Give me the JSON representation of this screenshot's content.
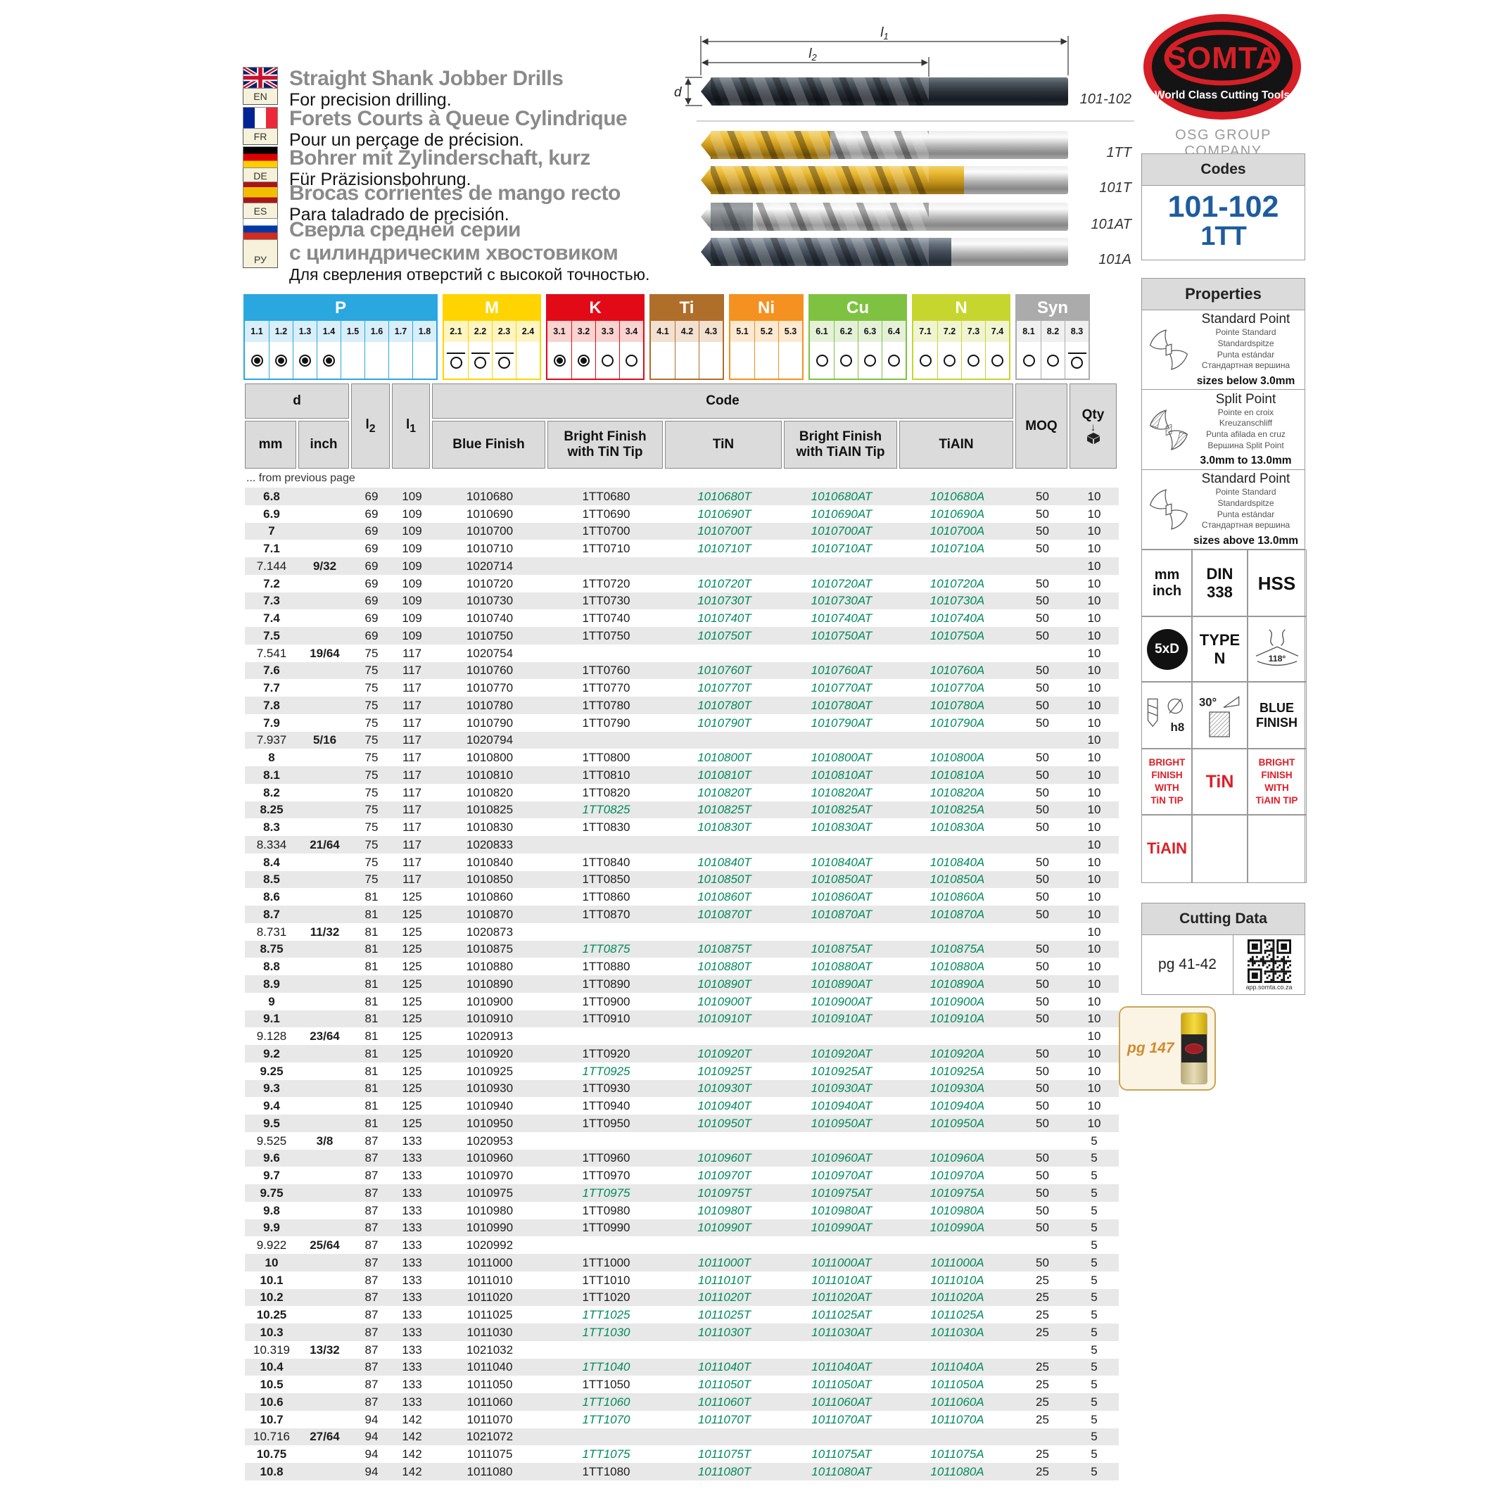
{
  "header": {
    "languages": [
      {
        "flag": "uk",
        "code": "EN",
        "title": "Straight Shank Jobber Drills",
        "subtitle": "For precision drilling."
      },
      {
        "flag": "fr",
        "code": "FR",
        "title": "Forets Courts à Queue Cylindrique",
        "subtitle": "Pour un perçage de précision."
      },
      {
        "flag": "de",
        "code": "DE",
        "title": "Bohrer mit Zylinderschaft, kurz",
        "subtitle": "Für Präzisionsbohrung."
      },
      {
        "flag": "es",
        "code": "ES",
        "title": "Brocas corrientes de mango recto",
        "subtitle": "Para taladrado de precisión."
      },
      {
        "flag": "ru",
        "code": "РУ",
        "title": "Сверла средней серии",
        "title2": "с цилиндрическим хвостовиком",
        "subtitle": "Для сверления отверстий с высокой точностью."
      }
    ]
  },
  "diagram": {
    "labels": {
      "l_char": "l",
      "l1_sub": "1",
      "l2_sub": "2",
      "d": "d"
    },
    "drills": [
      "101-102",
      "1TT",
      "101T",
      "101AT",
      "101A"
    ]
  },
  "brand": {
    "name": "SOMTA",
    "tagline": "World Class Cutting Tools",
    "company": "OSG GROUP COMPANY",
    "red": "#D61F26"
  },
  "codes": {
    "title": "Codes",
    "primary": "101-102",
    "secondary": "1TT",
    "color": "#1E5C9E"
  },
  "materials": {
    "groups": [
      {
        "name": "P",
        "color": "#2BA7DF",
        "tint": "#D8EEF9",
        "cells": [
          {
            "n": "1.1",
            "mark": "filled"
          },
          {
            "n": "1.2",
            "mark": "filled"
          },
          {
            "n": "1.3",
            "mark": "filled"
          },
          {
            "n": "1.4",
            "mark": "filled"
          },
          {
            "n": "1.5",
            "mark": "none"
          },
          {
            "n": "1.6",
            "mark": "none"
          },
          {
            "n": "1.7",
            "mark": "none"
          },
          {
            "n": "1.8",
            "mark": "none"
          }
        ]
      },
      {
        "name": "M",
        "color": "#FFD400",
        "tint": "#FFF5C2",
        "cells": [
          {
            "n": "2.1",
            "mark": "bar"
          },
          {
            "n": "2.2",
            "mark": "bar"
          },
          {
            "n": "2.3",
            "mark": "bar"
          },
          {
            "n": "2.4",
            "mark": "none"
          }
        ]
      },
      {
        "name": "K",
        "color": "#E30A17",
        "tint": "#F9D3D0",
        "cells": [
          {
            "n": "3.1",
            "mark": "filled"
          },
          {
            "n": "3.2",
            "mark": "filled"
          },
          {
            "n": "3.3",
            "mark": "empty"
          },
          {
            "n": "3.4",
            "mark": "empty"
          }
        ]
      },
      {
        "name": "Ti",
        "color": "#B06E2B",
        "tint": "#F2E0D0",
        "cells": [
          {
            "n": "4.1",
            "mark": "none"
          },
          {
            "n": "4.2",
            "mark": "none"
          },
          {
            "n": "4.3",
            "mark": "none"
          }
        ]
      },
      {
        "name": "Ni",
        "color": "#F59120",
        "tint": "#FDE9D2",
        "cells": [
          {
            "n": "5.1",
            "mark": "none"
          },
          {
            "n": "5.2",
            "mark": "none"
          },
          {
            "n": "5.3",
            "mark": "none"
          }
        ]
      },
      {
        "name": "Cu",
        "color": "#7FC241",
        "tint": "#E4F1D8",
        "cells": [
          {
            "n": "6.1",
            "mark": "empty"
          },
          {
            "n": "6.2",
            "mark": "empty"
          },
          {
            "n": "6.3",
            "mark": "empty"
          },
          {
            "n": "6.4",
            "mark": "empty"
          }
        ]
      },
      {
        "name": "N",
        "color": "#C6D62E",
        "tint": "#F0F4D0",
        "cells": [
          {
            "n": "7.1",
            "mark": "empty"
          },
          {
            "n": "7.2",
            "mark": "empty"
          },
          {
            "n": "7.3",
            "mark": "empty"
          },
          {
            "n": "7.4",
            "mark": "empty"
          }
        ]
      },
      {
        "name": "Syn",
        "color": "#ABABAB",
        "tint": "#EFEFEF",
        "cells": [
          {
            "n": "8.1",
            "mark": "empty"
          },
          {
            "n": "8.2",
            "mark": "empty"
          },
          {
            "n": "8.3",
            "mark": "bar"
          }
        ]
      }
    ]
  },
  "table": {
    "headers": {
      "d": "d",
      "mm": "mm",
      "inch": "inch",
      "code": "Code",
      "blue": "Blue Finish",
      "tt": "Bright Finish\nwith TiN Tip",
      "tin": "TiN",
      "at": "Bright Finish\nwith TiAIN Tip",
      "a": "TiAIN",
      "moq": "MOQ",
      "qty": "Qty"
    },
    "note": "... from previous page",
    "green_color": "#008A5E",
    "columns": [
      "mm",
      "inch",
      "l2",
      "l1",
      "blue_finish",
      "bright_finish_tin_tip",
      "tin",
      "bright_finish_tiain_tip",
      "tiain",
      "moq",
      "qty",
      "tt_is_green"
    ],
    "rows": [
      [
        "6.8",
        "",
        "69",
        "109",
        "1010680",
        "1TT0680",
        "1010680T",
        "1010680AT",
        "1010680A",
        "50",
        "10",
        0
      ],
      [
        "6.9",
        "",
        "69",
        "109",
        "1010690",
        "1TT0690",
        "1010690T",
        "1010690AT",
        "1010690A",
        "50",
        "10",
        0
      ],
      [
        "7",
        "",
        "69",
        "109",
        "1010700",
        "1TT0700",
        "1010700T",
        "1010700AT",
        "1010700A",
        "50",
        "10",
        0
      ],
      [
        "7.1",
        "",
        "69",
        "109",
        "1010710",
        "1TT0710",
        "1010710T",
        "1010710AT",
        "1010710A",
        "50",
        "10",
        0
      ],
      [
        "7.144",
        "9/32",
        "69",
        "109",
        "1020714",
        "",
        "",
        "",
        "",
        "",
        "10",
        0
      ],
      [
        "7.2",
        "",
        "69",
        "109",
        "1010720",
        "1TT0720",
        "1010720T",
        "1010720AT",
        "1010720A",
        "50",
        "10",
        0
      ],
      [
        "7.3",
        "",
        "69",
        "109",
        "1010730",
        "1TT0730",
        "1010730T",
        "1010730AT",
        "1010730A",
        "50",
        "10",
        0
      ],
      [
        "7.4",
        "",
        "69",
        "109",
        "1010740",
        "1TT0740",
        "1010740T",
        "1010740AT",
        "1010740A",
        "50",
        "10",
        0
      ],
      [
        "7.5",
        "",
        "69",
        "109",
        "1010750",
        "1TT0750",
        "1010750T",
        "1010750AT",
        "1010750A",
        "50",
        "10",
        0
      ],
      [
        "7.541",
        "19/64",
        "75",
        "117",
        "1020754",
        "",
        "",
        "",
        "",
        "",
        "10",
        0
      ],
      [
        "7.6",
        "",
        "75",
        "117",
        "1010760",
        "1TT0760",
        "1010760T",
        "1010760AT",
        "1010760A",
        "50",
        "10",
        0
      ],
      [
        "7.7",
        "",
        "75",
        "117",
        "1010770",
        "1TT0770",
        "1010770T",
        "1010770AT",
        "1010770A",
        "50",
        "10",
        0
      ],
      [
        "7.8",
        "",
        "75",
        "117",
        "1010780",
        "1TT0780",
        "1010780T",
        "1010780AT",
        "1010780A",
        "50",
        "10",
        0
      ],
      [
        "7.9",
        "",
        "75",
        "117",
        "1010790",
        "1TT0790",
        "1010790T",
        "1010790AT",
        "1010790A",
        "50",
        "10",
        0
      ],
      [
        "7.937",
        "5/16",
        "75",
        "117",
        "1020794",
        "",
        "",
        "",
        "",
        "",
        "10",
        0
      ],
      [
        "8",
        "",
        "75",
        "117",
        "1010800",
        "1TT0800",
        "1010800T",
        "1010800AT",
        "1010800A",
        "50",
        "10",
        0
      ],
      [
        "8.1",
        "",
        "75",
        "117",
        "1010810",
        "1TT0810",
        "1010810T",
        "1010810AT",
        "1010810A",
        "50",
        "10",
        0
      ],
      [
        "8.2",
        "",
        "75",
        "117",
        "1010820",
        "1TT0820",
        "1010820T",
        "1010820AT",
        "1010820A",
        "50",
        "10",
        0
      ],
      [
        "8.25",
        "",
        "75",
        "117",
        "1010825",
        "1TT0825",
        "1010825T",
        "1010825AT",
        "1010825A",
        "50",
        "10",
        1
      ],
      [
        "8.3",
        "",
        "75",
        "117",
        "1010830",
        "1TT0830",
        "1010830T",
        "1010830AT",
        "1010830A",
        "50",
        "10",
        0
      ],
      [
        "8.334",
        "21/64",
        "75",
        "117",
        "1020833",
        "",
        "",
        "",
        "",
        "",
        "10",
        0
      ],
      [
        "8.4",
        "",
        "75",
        "117",
        "1010840",
        "1TT0840",
        "1010840T",
        "1010840AT",
        "1010840A",
        "50",
        "10",
        0
      ],
      [
        "8.5",
        "",
        "75",
        "117",
        "1010850",
        "1TT0850",
        "1010850T",
        "1010850AT",
        "1010850A",
        "50",
        "10",
        0
      ],
      [
        "8.6",
        "",
        "81",
        "125",
        "1010860",
        "1TT0860",
        "1010860T",
        "1010860AT",
        "1010860A",
        "50",
        "10",
        0
      ],
      [
        "8.7",
        "",
        "81",
        "125",
        "1010870",
        "1TT0870",
        "1010870T",
        "1010870AT",
        "1010870A",
        "50",
        "10",
        0
      ],
      [
        "8.731",
        "11/32",
        "81",
        "125",
        "1020873",
        "",
        "",
        "",
        "",
        "",
        "10",
        0
      ],
      [
        "8.75",
        "",
        "81",
        "125",
        "1010875",
        "1TT0875",
        "1010875T",
        "1010875AT",
        "1010875A",
        "50",
        "10",
        1
      ],
      [
        "8.8",
        "",
        "81",
        "125",
        "1010880",
        "1TT0880",
        "1010880T",
        "1010880AT",
        "1010880A",
        "50",
        "10",
        0
      ],
      [
        "8.9",
        "",
        "81",
        "125",
        "1010890",
        "1TT0890",
        "1010890T",
        "1010890AT",
        "1010890A",
        "50",
        "10",
        0
      ],
      [
        "9",
        "",
        "81",
        "125",
        "1010900",
        "1TT0900",
        "1010900T",
        "1010900AT",
        "1010900A",
        "50",
        "10",
        0
      ],
      [
        "9.1",
        "",
        "81",
        "125",
        "1010910",
        "1TT0910",
        "1010910T",
        "1010910AT",
        "1010910A",
        "50",
        "10",
        0
      ],
      [
        "9.128",
        "23/64",
        "81",
        "125",
        "1020913",
        "",
        "",
        "",
        "",
        "",
        "10",
        0
      ],
      [
        "9.2",
        "",
        "81",
        "125",
        "1010920",
        "1TT0920",
        "1010920T",
        "1010920AT",
        "1010920A",
        "50",
        "10",
        0
      ],
      [
        "9.25",
        "",
        "81",
        "125",
        "1010925",
        "1TT0925",
        "1010925T",
        "1010925AT",
        "1010925A",
        "50",
        "10",
        1
      ],
      [
        "9.3",
        "",
        "81",
        "125",
        "1010930",
        "1TT0930",
        "1010930T",
        "1010930AT",
        "1010930A",
        "50",
        "10",
        0
      ],
      [
        "9.4",
        "",
        "81",
        "125",
        "1010940",
        "1TT0940",
        "1010940T",
        "1010940AT",
        "1010940A",
        "50",
        "10",
        0
      ],
      [
        "9.5",
        "",
        "81",
        "125",
        "1010950",
        "1TT0950",
        "1010950T",
        "1010950AT",
        "1010950A",
        "50",
        "10",
        0
      ],
      [
        "9.525",
        "3/8",
        "87",
        "133",
        "1020953",
        "",
        "",
        "",
        "",
        "",
        "5",
        0
      ],
      [
        "9.6",
        "",
        "87",
        "133",
        "1010960",
        "1TT0960",
        "1010960T",
        "1010960AT",
        "1010960A",
        "50",
        "5",
        0
      ],
      [
        "9.7",
        "",
        "87",
        "133",
        "1010970",
        "1TT0970",
        "1010970T",
        "1010970AT",
        "1010970A",
        "50",
        "5",
        0
      ],
      [
        "9.75",
        "",
        "87",
        "133",
        "1010975",
        "1TT0975",
        "1010975T",
        "1010975AT",
        "1010975A",
        "50",
        "5",
        1
      ],
      [
        "9.8",
        "",
        "87",
        "133",
        "1010980",
        "1TT0980",
        "1010980T",
        "1010980AT",
        "1010980A",
        "50",
        "5",
        0
      ],
      [
        "9.9",
        "",
        "87",
        "133",
        "1010990",
        "1TT0990",
        "1010990T",
        "1010990AT",
        "1010990A",
        "50",
        "5",
        0
      ],
      [
        "9.922",
        "25/64",
        "87",
        "133",
        "1020992",
        "",
        "",
        "",
        "",
        "",
        "5",
        0
      ],
      [
        "10",
        "",
        "87",
        "133",
        "1011000",
        "1TT1000",
        "1011000T",
        "1011000AT",
        "1011000A",
        "50",
        "5",
        0
      ],
      [
        "10.1",
        "",
        "87",
        "133",
        "1011010",
        "1TT1010",
        "1011010T",
        "1011010AT",
        "1011010A",
        "25",
        "5",
        0
      ],
      [
        "10.2",
        "",
        "87",
        "133",
        "1011020",
        "1TT1020",
        "1011020T",
        "1011020AT",
        "1011020A",
        "25",
        "5",
        0
      ],
      [
        "10.25",
        "",
        "87",
        "133",
        "1011025",
        "1TT1025",
        "1011025T",
        "1011025AT",
        "1011025A",
        "25",
        "5",
        1
      ],
      [
        "10.3",
        "",
        "87",
        "133",
        "1011030",
        "1TT1030",
        "1011030T",
        "1011030AT",
        "1011030A",
        "25",
        "5",
        1
      ],
      [
        "10.319",
        "13/32",
        "87",
        "133",
        "1021032",
        "",
        "",
        "",
        "",
        "",
        "5",
        0
      ],
      [
        "10.4",
        "",
        "87",
        "133",
        "1011040",
        "1TT1040",
        "1011040T",
        "1011040AT",
        "1011040A",
        "25",
        "5",
        1
      ],
      [
        "10.5",
        "",
        "87",
        "133",
        "1011050",
        "1TT1050",
        "1011050T",
        "1011050AT",
        "1011050A",
        "25",
        "5",
        0
      ],
      [
        "10.6",
        "",
        "87",
        "133",
        "1011060",
        "1TT1060",
        "1011060T",
        "1011060AT",
        "1011060A",
        "25",
        "5",
        1
      ],
      [
        "10.7",
        "",
        "94",
        "142",
        "1011070",
        "1TT1070",
        "1011070T",
        "1011070AT",
        "1011070A",
        "25",
        "5",
        1
      ],
      [
        "10.716",
        "27/64",
        "94",
        "142",
        "1021072",
        "",
        "",
        "",
        "",
        "",
        "5",
        0
      ],
      [
        "10.75",
        "",
        "94",
        "142",
        "1011075",
        "1TT1075",
        "1011075T",
        "1011075AT",
        "1011075A",
        "25",
        "5",
        1
      ],
      [
        "10.8",
        "",
        "94",
        "142",
        "1011080",
        "1TT1080",
        "1011080T",
        "1011080AT",
        "1011080A",
        "25",
        "5",
        0
      ]
    ]
  },
  "properties": {
    "title": "Properties",
    "points": [
      {
        "title": "Standard Point",
        "l1": "Pointe Standard",
        "l2": "Standardspitze",
        "l3": "Punta estándar",
        "l4": "Стандартная вершина",
        "size": "sizes below 3.0mm"
      },
      {
        "title": "Split Point",
        "l1": "Pointe en croix",
        "l2": "Kreuzanschliff",
        "l3": "Punta afilada en cruz",
        "l4": "Вершина Split Point",
        "size": "3.0mm to 13.0mm"
      },
      {
        "title": "Standard Point",
        "l1": "Pointe Standard",
        "l2": "Standardspitze",
        "l3": "Punta estándar",
        "l4": "Стандартная вершина",
        "size": "sizes above 13.0mm"
      }
    ],
    "grid": {
      "units": "mm\ninch",
      "din": "DIN\n338",
      "hss": "HSS",
      "fivexd": "5xD",
      "type": "TYPE\nN",
      "angle": "118°",
      "h8": "h8",
      "deg30": "30°",
      "blue": "BLUE\nFINISH",
      "bf_tin": "BRIGHT\nFINISH\nWITH\nTiN TIP",
      "tin": "TiN",
      "bf_tiain": "BRIGHT\nFINISH\nWITH\nTiAIN TIP",
      "tiain": "TiAIN"
    }
  },
  "cutting_data": {
    "title": "Cutting Data",
    "page_ref": "pg 41-42",
    "qr_caption": "app.somta.co.za"
  },
  "catalog_ref": {
    "label": "pg 147"
  }
}
